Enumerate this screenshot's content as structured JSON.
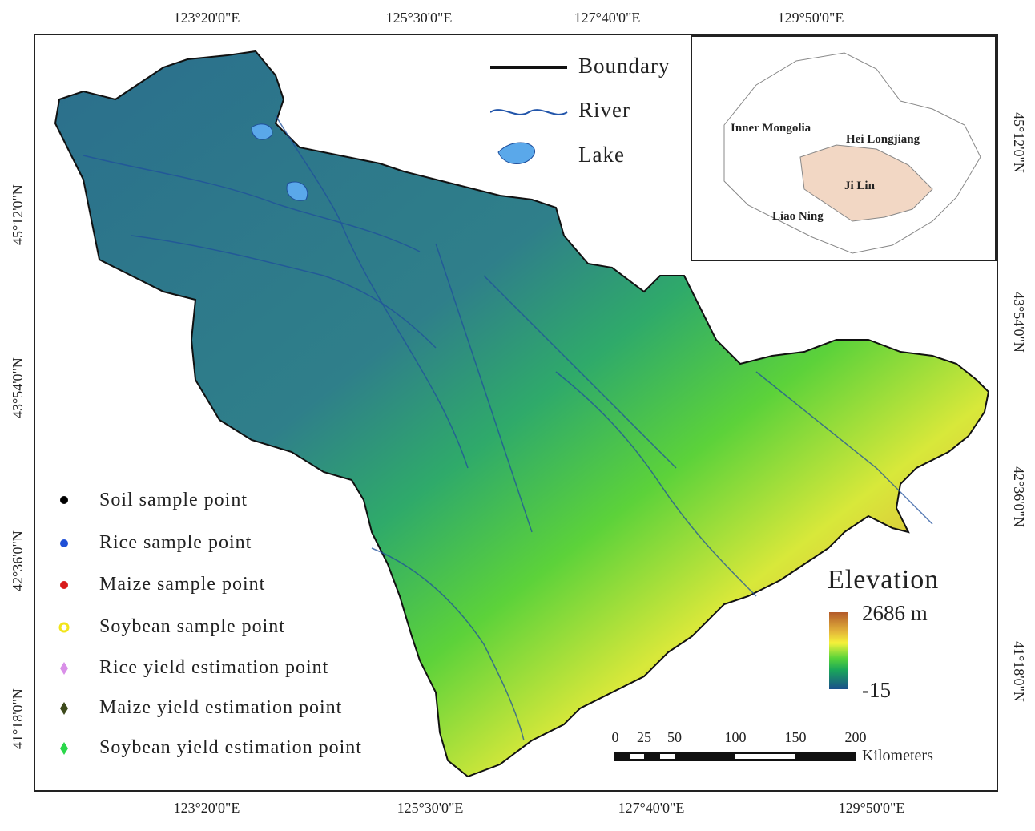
{
  "coords": {
    "top": [
      "123°20'0\"E",
      "125°30'0\"E",
      "127°40'0\"E",
      "129°50'0\"E"
    ],
    "bottom": [
      "123°20'0\"E",
      "125°30'0\"E",
      "127°40'0\"E",
      "129°50'0\"E"
    ],
    "left": [
      "45°12'0\"N",
      "43°54'0\"N",
      "42°36'0\"N",
      "41°18'0\"N"
    ],
    "right": [
      "45°12'0\"N",
      "43°54'0\"N",
      "42°36'0\"N",
      "41°18'0\"N"
    ]
  },
  "top_legend": {
    "boundary": "Boundary",
    "river": "River",
    "lake": "Lake"
  },
  "legend": [
    {
      "label": "Soil sample point",
      "color": "#000000",
      "symbol": "dot"
    },
    {
      "label": "Rice sample point",
      "color": "#1f4fd6",
      "symbol": "dot"
    },
    {
      "label": "Maize sample point",
      "color": "#d81a1a",
      "symbol": "dot"
    },
    {
      "label": "Soybean sample point",
      "color": "#f2e51a",
      "symbol": "ring"
    },
    {
      "label": "Rice yield estimation point",
      "color": "#d98fe8",
      "symbol": "diamond"
    },
    {
      "label": "Maize yield estimation point",
      "color": "#3d4a1c",
      "symbol": "diamond"
    },
    {
      "label": "Soybean yield estimation point",
      "color": "#2ad84a",
      "symbol": "diamond"
    }
  ],
  "inset": {
    "labels": {
      "inner_mongolia": "Inner Mongolia",
      "heilongjiang": "Hei Longjiang",
      "jilin": "Ji Lin",
      "liaoning": "Liao Ning"
    },
    "highlight_color": "#f2d7c4"
  },
  "elevation": {
    "title": "Elevation",
    "max": "2686 m",
    "min": "-15"
  },
  "scale": {
    "ticks": [
      "0",
      "25",
      "50",
      "100",
      "150",
      "200"
    ],
    "unit": "Kilometers"
  },
  "colors": {
    "lowland": "#2b6f8c",
    "mid": "#3cc24a",
    "high": "#d9a23a",
    "river": "#2255aa",
    "lake": "#5aa8ea"
  }
}
